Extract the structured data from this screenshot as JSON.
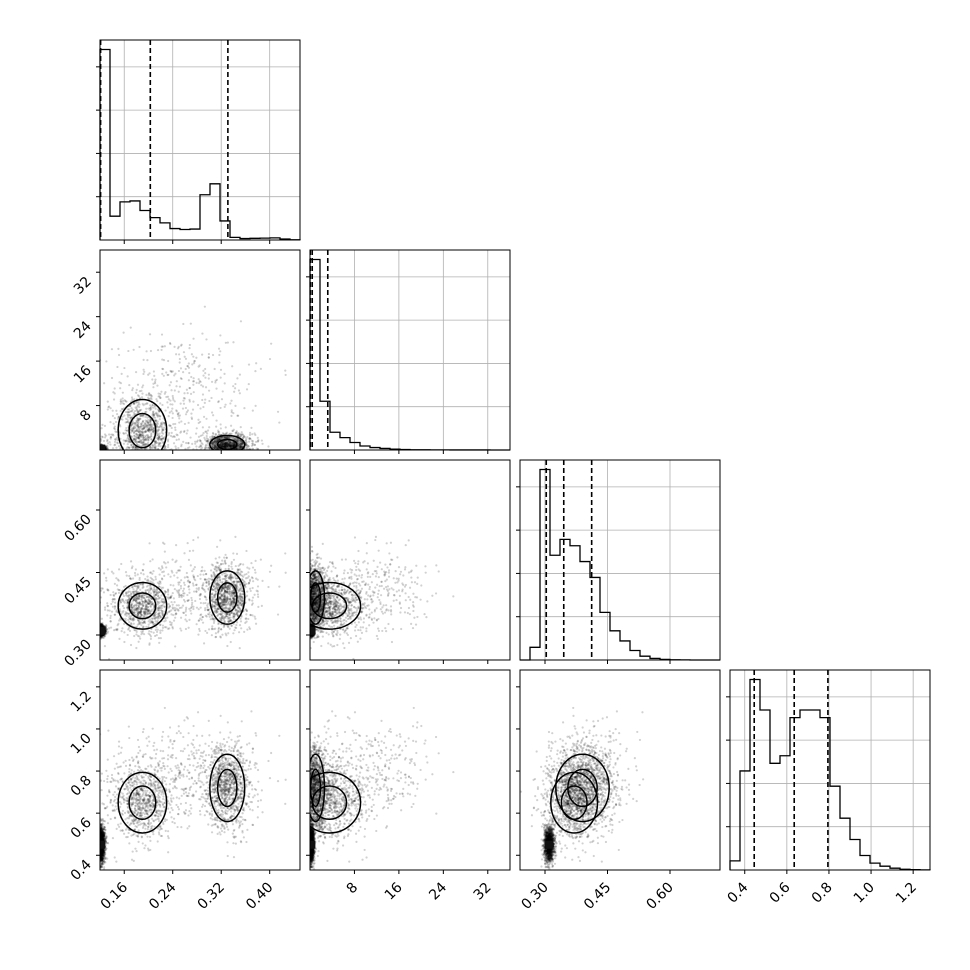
{
  "chart_data": {
    "type": "corner",
    "title": "",
    "grid": true,
    "dimensions": 4,
    "axes": [
      {
        "name": "",
        "range": [
          0.12,
          0.45
        ],
        "ticks": [
          0.16,
          0.24,
          0.32,
          0.4
        ],
        "tick_labels": [
          "0.16",
          "0.24",
          "0.32",
          "0.40"
        ]
      },
      {
        "name": "",
        "range": [
          0,
          36
        ],
        "ticks": [
          8,
          16,
          24,
          32
        ],
        "tick_labels": [
          "8",
          "16",
          "24",
          "32"
        ]
      },
      {
        "name": "",
        "range": [
          0.24,
          0.72
        ],
        "ticks": [
          0.3,
          0.45,
          0.6
        ],
        "tick_labels": [
          "0.30",
          "0.45",
          "0.60"
        ]
      },
      {
        "name": "",
        "range": [
          0.33,
          1.28
        ],
        "ticks": [
          0.4,
          0.6,
          0.8,
          1.0,
          1.2
        ],
        "tick_labels": [
          "0.4",
          "0.6",
          "0.8",
          "1.0",
          "1.2"
        ]
      }
    ],
    "histograms": [
      {
        "dim": 0,
        "bins_edges": [
          0.12,
          0.1365,
          0.153,
          0.1695,
          0.186,
          0.2025,
          0.219,
          0.2355,
          0.252,
          0.2685,
          0.285,
          0.3015,
          0.318,
          0.3345,
          0.351,
          0.3675,
          0.384,
          0.4005,
          0.417,
          0.4335,
          0.45
        ],
        "counts": [
          4000,
          500,
          800,
          820,
          620,
          470,
          360,
          240,
          220,
          230,
          950,
          1180,
          400,
          55,
          30,
          35,
          40,
          45,
          20,
          5
        ],
        "quantiles": [
          0.121,
          0.203,
          0.331
        ]
      },
      {
        "dim": 1,
        "bins_edges": [
          0,
          1.8,
          3.6,
          5.4,
          7.2,
          9.0,
          10.8,
          12.6,
          14.4,
          16.2,
          18.0,
          19.8,
          21.6,
          23.4,
          25.2,
          27.0,
          28.8,
          30.6,
          32.4,
          34.2,
          36.0
        ],
        "counts": [
          4300,
          1100,
          400,
          280,
          170,
          90,
          55,
          35,
          18,
          10,
          6,
          4,
          2,
          2,
          1,
          1,
          1,
          1,
          0,
          0
        ],
        "quantiles": [
          0.05,
          0.4,
          3.2
        ]
      },
      {
        "dim": 2,
        "bins_edges": [
          0.24,
          0.264,
          0.288,
          0.312,
          0.336,
          0.36,
          0.384,
          0.408,
          0.432,
          0.456,
          0.48,
          0.504,
          0.528,
          0.552,
          0.576,
          0.6,
          0.624,
          0.648,
          0.672,
          0.696,
          0.72
        ],
        "counts": [
          0,
          200,
          3000,
          1650,
          1900,
          1800,
          1550,
          1300,
          750,
          460,
          300,
          150,
          60,
          25,
          10,
          4,
          2,
          0,
          0,
          0
        ],
        "quantiles": [
          0.303,
          0.345,
          0.412
        ]
      },
      {
        "dim": 3,
        "bins_edges": [
          0.33,
          0.3775,
          0.425,
          0.4725,
          0.52,
          0.5675,
          0.615,
          0.6625,
          0.71,
          0.7575,
          0.805,
          0.8525,
          0.9,
          0.9475,
          0.995,
          1.0425,
          1.09,
          1.1375,
          1.185,
          1.2325,
          1.28
        ],
        "counts": [
          60,
          650,
          1250,
          1050,
          700,
          750,
          1000,
          1050,
          1050,
          1000,
          550,
          340,
          200,
          95,
          45,
          25,
          12,
          5,
          2,
          1
        ],
        "quantiles": [
          0.445,
          0.635,
          0.795
        ]
      }
    ],
    "scatter_pairs": [
      {
        "x_dim": 0,
        "y_dim": 1
      },
      {
        "x_dim": 0,
        "y_dim": 2
      },
      {
        "x_dim": 1,
        "y_dim": 2
      },
      {
        "x_dim": 0,
        "y_dim": 3
      },
      {
        "x_dim": 1,
        "y_dim": 3
      },
      {
        "x_dim": 2,
        "y_dim": 3
      }
    ]
  }
}
